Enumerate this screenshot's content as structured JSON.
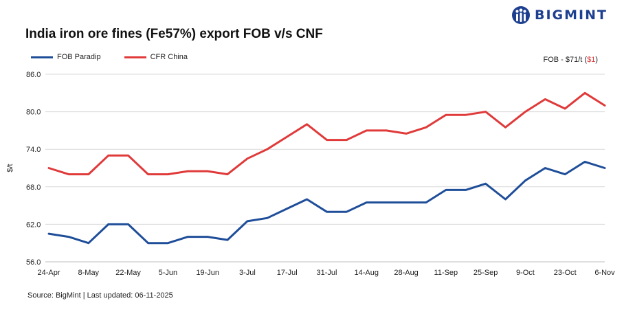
{
  "brand": {
    "name": "BIGMINT",
    "icon": "bigmint-logo-icon",
    "color": "#1d3f8f"
  },
  "note": {
    "prefix": "FOB - $71/t (",
    "change": "$1",
    "suffix": ")"
  },
  "source": "Source: BigMint | Last updated: 06-11-2025",
  "chart_data": {
    "type": "line",
    "title": "India iron ore fines (Fe57%) export FOB v/s CNF",
    "ylabel": "$/t",
    "xlabel": "",
    "ylim": [
      56,
      86
    ],
    "yticks": [
      56.0,
      62.0,
      68.0,
      74.0,
      80.0,
      86.0
    ],
    "ytick_labels": [
      "56.0",
      "62.0",
      "68.0",
      "74.0",
      "80.0",
      "86.0"
    ],
    "grid": true,
    "legend": "top-left",
    "x": [
      "24-Apr",
      "1-May",
      "8-May",
      "15-May",
      "22-May",
      "29-May",
      "5-Jun",
      "12-Jun",
      "19-Jun",
      "26-Jun",
      "3-Jul",
      "10-Jul",
      "17-Jul",
      "24-Jul",
      "31-Jul",
      "7-Aug",
      "14-Aug",
      "21-Aug",
      "28-Aug",
      "4-Sep",
      "11-Sep",
      "18-Sep",
      "25-Sep",
      "2-Oct",
      "9-Oct",
      "16-Oct",
      "23-Oct",
      "30-Oct",
      "6-Nov"
    ],
    "xtick_labels": [
      "24-Apr",
      "8-May",
      "22-May",
      "5-Jun",
      "19-Jun",
      "3-Jul",
      "17-Jul",
      "31-Jul",
      "14-Aug",
      "28-Aug",
      "11-Sep",
      "25-Sep",
      "9-Oct",
      "23-Oct",
      "6-Nov"
    ],
    "series": [
      {
        "name": "FOB Paradip",
        "color": "#1f4e99",
        "values": [
          60.5,
          60.0,
          59.0,
          62.0,
          62.0,
          59.0,
          59.0,
          60.0,
          60.0,
          59.5,
          62.5,
          63.0,
          64.5,
          66.0,
          64.0,
          64.0,
          65.5,
          65.5,
          65.5,
          65.5,
          67.5,
          67.5,
          68.5,
          66.0,
          69.0,
          71.0,
          70.0,
          72.0,
          71.0
        ]
      },
      {
        "name": "CFR China",
        "color": "#e03a3a",
        "values": [
          71.0,
          70.0,
          70.0,
          73.0,
          73.0,
          70.0,
          70.0,
          70.5,
          70.5,
          70.0,
          72.5,
          74.0,
          76.0,
          78.0,
          75.5,
          75.5,
          77.0,
          77.0,
          76.5,
          77.5,
          79.5,
          79.5,
          80.0,
          77.5,
          80.0,
          82.0,
          80.5,
          83.0,
          81.0
        ]
      }
    ]
  }
}
